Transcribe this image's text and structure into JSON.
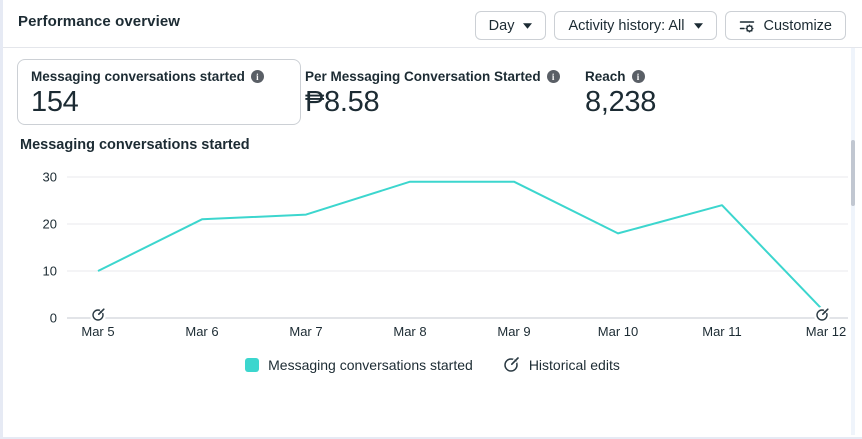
{
  "header": {
    "title": "Performance overview"
  },
  "toolbar": {
    "day_label": "Day",
    "activity_history_label": "Activity history: All",
    "customize_label": "Customize"
  },
  "icons": {
    "info_glyph": "i"
  },
  "metrics": [
    {
      "label": "Messaging conversations started",
      "value": "154",
      "selected": true
    },
    {
      "label": "Per Messaging Conversation Started",
      "value": "₱8.58",
      "selected": false
    },
    {
      "label": "Reach",
      "value": "8,238",
      "selected": false
    }
  ],
  "chart_section": {
    "title": "Messaging conversations started"
  },
  "legend": {
    "series_label": "Messaging conversations started",
    "historical_edits_label": "Historical edits"
  },
  "colors": {
    "accent_teal": "#3cd6ce",
    "text_dark": "#1c2b33",
    "grid_line": "#e8eaed",
    "zero_axis": "#c6cad0",
    "button_border": "#ccd0d5",
    "page_background": "#e6eaf4"
  },
  "chart_data": {
    "type": "line",
    "title": "Messaging conversations started",
    "categories": [
      "Mar 5",
      "Mar 6",
      "Mar 7",
      "Mar 8",
      "Mar 9",
      "Mar 10",
      "Mar 11",
      "Mar 12"
    ],
    "values": [
      10,
      21,
      22,
      29,
      29,
      18,
      24,
      1
    ],
    "series": [
      {
        "name": "Messaging conversations started",
        "values": [
          10,
          21,
          22,
          29,
          29,
          18,
          24,
          1
        ],
        "color": "#3cd6ce"
      }
    ],
    "xlabel": "",
    "ylabel": "",
    "ylim": [
      0,
      30
    ],
    "yticks": [
      0,
      10,
      20,
      30
    ],
    "grid": "horizontal",
    "legend_position": "bottom",
    "historical_edit_marks": [
      "Mar 5",
      "Mar 12"
    ]
  }
}
